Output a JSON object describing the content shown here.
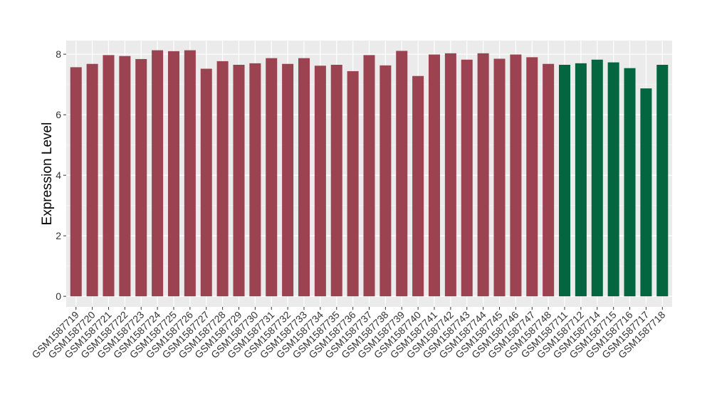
{
  "chart_data": {
    "type": "bar",
    "ylabel": "Expression Level",
    "xlabel": "",
    "ylim": [
      -0.35,
      8.45
    ],
    "yticks": [
      0,
      2,
      4,
      6,
      8
    ],
    "grid": true,
    "background": "#ebebeb",
    "colors": {
      "group_a": "#9b4350",
      "group_b": "#036641"
    },
    "categories": [
      "GSM1587719",
      "GSM1587720",
      "GSM1587721",
      "GSM1587722",
      "GSM1587723",
      "GSM1587724",
      "GSM1587725",
      "GSM1587726",
      "GSM1587727",
      "GSM1587728",
      "GSM1587729",
      "GSM1587730",
      "GSM1587731",
      "GSM1587732",
      "GSM1587733",
      "GSM1587734",
      "GSM1587735",
      "GSM1587736",
      "GSM1587737",
      "GSM1587738",
      "GSM1587739",
      "GSM1587740",
      "GSM1587741",
      "GSM1587742",
      "GSM1587743",
      "GSM1587744",
      "GSM1587745",
      "GSM1587746",
      "GSM1587747",
      "GSM1587748",
      "GSM1587711",
      "GSM1587712",
      "GSM1587714",
      "GSM1587715",
      "GSM1587716",
      "GSM1587717",
      "GSM1587718"
    ],
    "values": [
      7.57,
      7.68,
      7.97,
      7.94,
      7.84,
      8.13,
      8.1,
      8.13,
      7.52,
      7.77,
      7.65,
      7.7,
      7.87,
      7.68,
      7.87,
      7.62,
      7.65,
      7.44,
      7.97,
      7.63,
      8.11,
      7.28,
      7.99,
      8.03,
      7.82,
      8.03,
      7.85,
      7.99,
      7.9,
      7.68,
      7.65,
      7.7,
      7.82,
      7.73,
      7.54,
      6.87,
      7.65
    ],
    "groups": [
      "a",
      "a",
      "a",
      "a",
      "a",
      "a",
      "a",
      "a",
      "a",
      "a",
      "a",
      "a",
      "a",
      "a",
      "a",
      "a",
      "a",
      "a",
      "a",
      "a",
      "a",
      "a",
      "a",
      "a",
      "a",
      "a",
      "a",
      "a",
      "a",
      "a",
      "b",
      "b",
      "b",
      "b",
      "b",
      "b",
      "b"
    ]
  }
}
